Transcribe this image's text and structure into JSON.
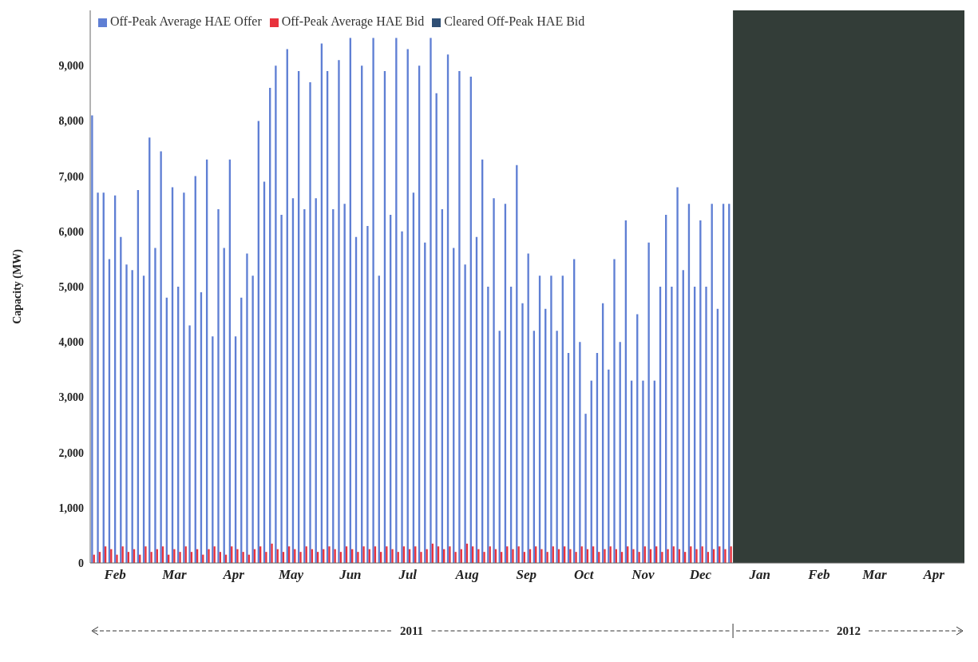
{
  "chart_data": {
    "type": "bar",
    "ylabel": "Capacity (MW)",
    "x": [
      "2011-02-01",
      "2011-02-04",
      "2011-02-07",
      "2011-02-10",
      "2011-02-13",
      "2011-02-16",
      "2011-02-19",
      "2011-02-22",
      "2011-02-25",
      "2011-02-28",
      "2011-03-03",
      "2011-03-06",
      "2011-03-09",
      "2011-03-12",
      "2011-03-15",
      "2011-03-18",
      "2011-03-21",
      "2011-03-24",
      "2011-03-27",
      "2011-03-30",
      "2011-04-02",
      "2011-04-05",
      "2011-04-08",
      "2011-04-11",
      "2011-04-14",
      "2011-04-17",
      "2011-04-20",
      "2011-04-23",
      "2011-04-26",
      "2011-04-29",
      "2011-05-02",
      "2011-05-05",
      "2011-05-08",
      "2011-05-11",
      "2011-05-14",
      "2011-05-17",
      "2011-05-20",
      "2011-05-23",
      "2011-05-26",
      "2011-05-29",
      "2011-06-01",
      "2011-06-04",
      "2011-06-07",
      "2011-06-10",
      "2011-06-13",
      "2011-06-16",
      "2011-06-19",
      "2011-06-22",
      "2011-06-25",
      "2011-06-28",
      "2011-07-01",
      "2011-07-04",
      "2011-07-07",
      "2011-07-10",
      "2011-07-13",
      "2011-07-16",
      "2011-07-19",
      "2011-07-22",
      "2011-07-25",
      "2011-07-28",
      "2011-07-31",
      "2011-08-03",
      "2011-08-06",
      "2011-08-09",
      "2011-08-12",
      "2011-08-15",
      "2011-08-18",
      "2011-08-21",
      "2011-08-24",
      "2011-08-27",
      "2011-08-30",
      "2011-09-02",
      "2011-09-05",
      "2011-09-08",
      "2011-09-11",
      "2011-09-14",
      "2011-09-17",
      "2011-09-20",
      "2011-09-23",
      "2011-09-26",
      "2011-09-29",
      "2011-10-02",
      "2011-10-05",
      "2011-10-08",
      "2011-10-11",
      "2011-10-14",
      "2011-10-17",
      "2011-10-20",
      "2011-10-23",
      "2011-10-26",
      "2011-10-29",
      "2011-11-01",
      "2011-11-04",
      "2011-11-07",
      "2011-11-10",
      "2011-11-13",
      "2011-11-16",
      "2011-11-19",
      "2011-11-22",
      "2011-11-25",
      "2011-11-28",
      "2011-12-01",
      "2011-12-04",
      "2011-12-07",
      "2011-12-10",
      "2011-12-13",
      "2011-12-16",
      "2011-12-19",
      "2011-12-22",
      "2011-12-25",
      "2011-12-28",
      "2011-12-31"
    ],
    "series": [
      {
        "name": "Off-Peak Average HAE Offer",
        "color": "#5f7fd4",
        "values": [
          8100,
          6700,
          6700,
          5500,
          6650,
          5900,
          5400,
          5300,
          6750,
          5200,
          7700,
          5700,
          7450,
          4800,
          6800,
          5000,
          6700,
          4300,
          7000,
          4900,
          7300,
          4100,
          6400,
          5700,
          7300,
          4100,
          4800,
          5600,
          5200,
          8000,
          6900,
          8600,
          9000,
          6300,
          9300,
          6600,
          8900,
          6400,
          8700,
          6600,
          9400,
          8900,
          6400,
          9100,
          6500,
          9500,
          5900,
          9000,
          6100,
          9500,
          5200,
          8900,
          6300,
          9500,
          6000,
          9300,
          6700,
          9000,
          5800,
          9500,
          8500,
          6400,
          9200,
          5700,
          8900,
          5400,
          8800,
          5900,
          7300,
          5000,
          6600,
          4200,
          6500,
          5000,
          7200,
          4700,
          5600,
          4200,
          5200,
          4600,
          5200,
          4200,
          5200,
          3800,
          5500,
          4000,
          2700,
          3300,
          3800,
          4700,
          3500,
          5500,
          4000,
          6200,
          3300,
          4500,
          3300,
          5800,
          3300,
          5000,
          6300,
          5000,
          6800,
          5300,
          6500,
          5000,
          6200,
          5000,
          6500,
          4600,
          6500,
          6500
        ]
      },
      {
        "name": "Off-Peak Average HAE Bid",
        "color": "#e8323c",
        "values": [
          150,
          200,
          300,
          250,
          150,
          300,
          200,
          250,
          150,
          300,
          200,
          250,
          300,
          150,
          250,
          200,
          300,
          200,
          250,
          150,
          250,
          300,
          200,
          150,
          300,
          250,
          200,
          150,
          250,
          300,
          200,
          350,
          250,
          200,
          300,
          250,
          200,
          300,
          250,
          200,
          250,
          300,
          250,
          200,
          300,
          250,
          200,
          300,
          250,
          300,
          200,
          300,
          250,
          200,
          300,
          250,
          300,
          200,
          250,
          350,
          300,
          250,
          300,
          200,
          250,
          350,
          300,
          250,
          200,
          300,
          250,
          200,
          300,
          250,
          300,
          200,
          250,
          300,
          250,
          200,
          300,
          250,
          300,
          250,
          200,
          300,
          250,
          300,
          200,
          250,
          300,
          250,
          200,
          300,
          250,
          200,
          300,
          250,
          300,
          200,
          250,
          300,
          250,
          200,
          300,
          250,
          300,
          200,
          250,
          300,
          250,
          300
        ]
      },
      {
        "name": "Cleared Off-Peak HAE Bid",
        "color": "#2f4f75",
        "values": [
          null,
          null,
          null,
          null,
          null,
          null,
          null,
          null,
          null,
          null,
          null,
          null,
          null,
          null,
          null,
          null,
          null,
          null,
          null,
          null,
          null,
          null,
          null,
          null,
          null,
          null,
          null,
          null,
          null,
          null,
          null,
          null,
          null,
          null,
          null,
          null,
          null,
          null,
          null,
          null,
          null,
          null,
          null,
          null,
          null,
          null,
          null,
          null,
          null,
          null,
          null,
          null,
          null,
          null,
          null,
          null,
          null,
          null,
          null,
          null,
          null,
          null,
          null,
          null,
          null,
          null,
          null,
          null,
          null,
          null,
          null,
          null,
          null,
          null,
          null,
          null,
          null,
          null,
          null,
          null,
          null,
          null,
          null,
          null,
          null,
          null,
          null,
          null,
          null,
          null,
          null,
          null,
          null,
          null,
          null,
          null,
          null,
          null,
          null,
          null,
          null,
          null,
          null,
          null,
          null,
          null,
          null,
          null,
          null,
          null,
          null,
          null
        ]
      }
    ],
    "xlim": [
      "2011-01-30",
      "2012-05-01"
    ],
    "xticks": [
      {
        "value": "2011-02-12",
        "label": "Feb"
      },
      {
        "value": "2011-03-15",
        "label": "Mar"
      },
      {
        "value": "2011-04-15",
        "label": "Apr"
      },
      {
        "value": "2011-05-15",
        "label": "May"
      },
      {
        "value": "2011-06-15",
        "label": "Jun"
      },
      {
        "value": "2011-07-15",
        "label": "Jul"
      },
      {
        "value": "2011-08-15",
        "label": "Aug"
      },
      {
        "value": "2011-09-15",
        "label": "Sep"
      },
      {
        "value": "2011-10-15",
        "label": "Oct"
      },
      {
        "value": "2011-11-15",
        "label": "Nov"
      },
      {
        "value": "2011-12-15",
        "label": "Dec"
      },
      {
        "value": "2012-01-15",
        "label": "Jan"
      },
      {
        "value": "2012-02-15",
        "label": "Feb"
      },
      {
        "value": "2012-03-15",
        "label": "Mar"
      },
      {
        "value": "2012-04-15",
        "label": "Apr"
      }
    ],
    "ylim": [
      0,
      10000
    ],
    "yticks": [
      0,
      {
        "value": 1000,
        "label": "1,000"
      },
      {
        "value": 2000,
        "label": "2,000"
      },
      {
        "value": 3000,
        "label": "3,000"
      },
      {
        "value": 4000,
        "label": "4,000"
      },
      {
        "value": 5000,
        "label": "5,000"
      },
      {
        "value": 6000,
        "label": "6,000"
      },
      {
        "value": 7000,
        "label": "7,000"
      },
      {
        "value": 8000,
        "label": "8,000"
      },
      {
        "value": 9000,
        "label": "9,000"
      }
    ],
    "bands": [
      {
        "axis": "x",
        "from": "2012-01-01",
        "to": "2012-05-01",
        "color": "#333d38"
      }
    ],
    "annotations": [
      "2011",
      "2012"
    ],
    "grid": false,
    "legend": "top left"
  }
}
